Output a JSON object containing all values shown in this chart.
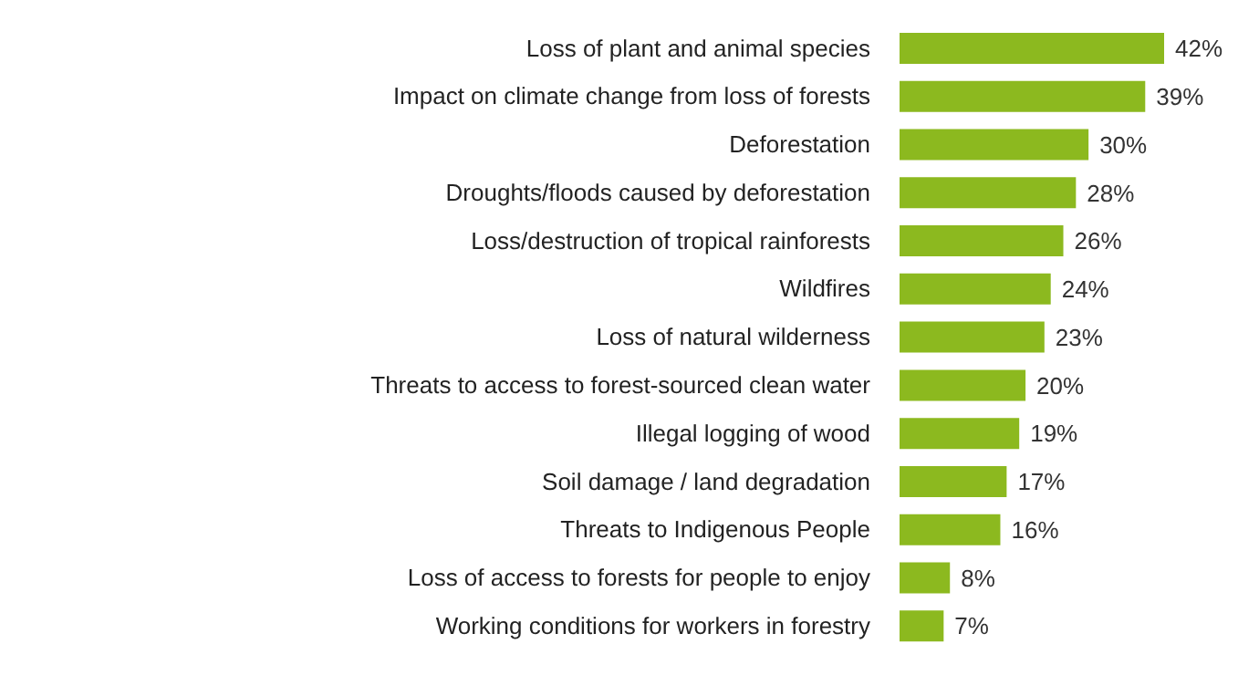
{
  "chart_data": {
    "type": "bar",
    "orientation": "horizontal",
    "categories": [
      "Loss of plant and animal species",
      "Impact on climate change from loss of forests",
      "Deforestation",
      "Droughts/floods caused by deforestation",
      "Loss/destruction of tropical rainforests",
      "Wildfires",
      "Loss of natural wilderness",
      "Threats to access to forest-sourced clean water",
      "Illegal logging of wood",
      "Soil damage / land degradation",
      "Threats to Indigenous People",
      "Loss of access to forests for people to enjoy",
      "Working conditions for workers in forestry"
    ],
    "values": [
      42,
      39,
      30,
      28,
      26,
      24,
      23,
      20,
      19,
      17,
      16,
      8,
      7
    ],
    "value_labels": [
      "42%",
      "39%",
      "30%",
      "28%",
      "26%",
      "24%",
      "23%",
      "20%",
      "19%",
      "17%",
      "16%",
      "8%",
      "7%"
    ],
    "color": "#8cb91f",
    "grid": false,
    "legend": false
  }
}
